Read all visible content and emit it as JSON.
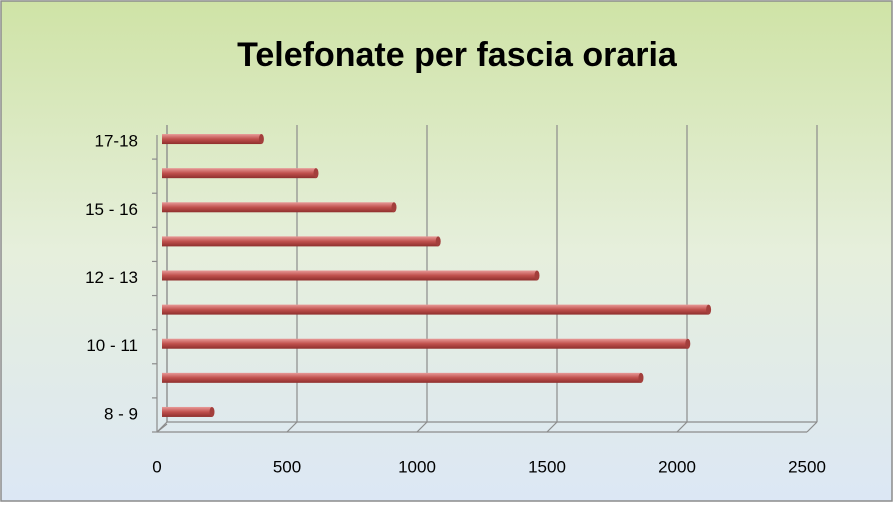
{
  "chart_data": {
    "type": "barh",
    "title": "Telefonate per fascia oraria",
    "categories": [
      "8 - 9",
      null,
      "10 - 11",
      null,
      "12 - 13",
      null,
      "15 - 16",
      null,
      "17-18"
    ],
    "values": [
      200,
      1850,
      2030,
      2110,
      1450,
      1070,
      900,
      600,
      390
    ],
    "color": "#c0504d",
    "xlim": [
      0,
      2500
    ],
    "xticks": [
      0,
      500,
      1000,
      1500,
      2000,
      2500
    ],
    "grid": true
  }
}
